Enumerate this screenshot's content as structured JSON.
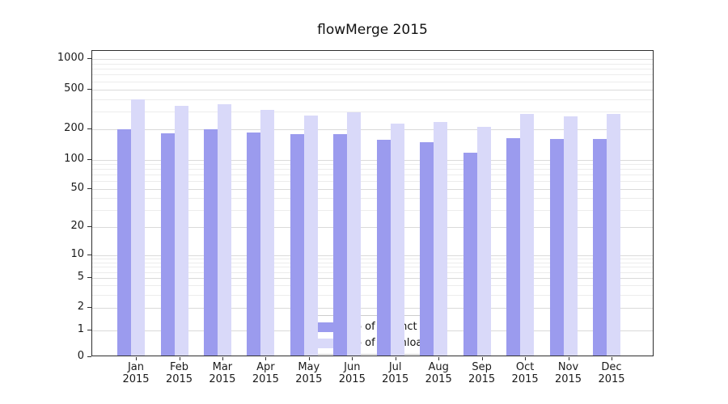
{
  "chart_data": {
    "type": "bar",
    "title": "flowMerge 2015",
    "year_label": "2015",
    "categories": [
      "Jan",
      "Feb",
      "Mar",
      "Apr",
      "May",
      "Jun",
      "Jul",
      "Aug",
      "Sep",
      "Oct",
      "Nov",
      "Dec"
    ],
    "series": [
      {
        "name": "Nb of distinct IPs",
        "color": "#9b9bee",
        "values": [
          195,
          178,
          196,
          182,
          173,
          173,
          152,
          146,
          113,
          160,
          157,
          157
        ]
      },
      {
        "name": "Nb of downloads",
        "color": "#d9d9f9",
        "values": [
          385,
          330,
          345,
          300,
          268,
          287,
          222,
          228,
          205,
          278,
          262,
          278
        ]
      }
    ],
    "yticks": [
      0,
      1,
      2,
      5,
      10,
      20,
      50,
      100,
      200,
      500,
      1000
    ],
    "minor_gridlines": [
      3,
      4,
      6,
      7,
      8,
      9,
      30,
      40,
      60,
      70,
      80,
      90,
      300,
      400,
      600,
      700,
      800,
      900
    ],
    "yscale": "symlog",
    "ylim": [
      0,
      1200
    ],
    "grid": true,
    "legend_position": "lower center",
    "colors": {
      "grid_major": "#dadada",
      "grid_minor": "#ececec",
      "axis": "#2e2e2e",
      "text": "#1a1a1a",
      "background": "#ffffff"
    }
  }
}
